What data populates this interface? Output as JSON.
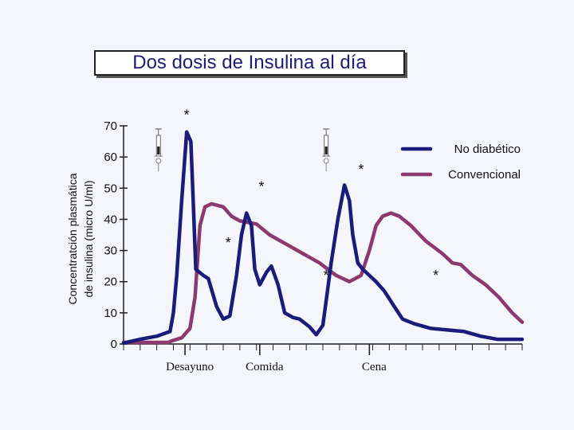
{
  "chart_data": {
    "type": "line",
    "title": "Dos dosis de Insulina al día",
    "ylabel_line1": "Concentratción plasmática",
    "ylabel_line2": "de insulina (micro U/ml)",
    "ylim": [
      0,
      70
    ],
    "yticks": [
      "0",
      "10",
      "20",
      "30",
      "40",
      "50",
      "60",
      "70"
    ],
    "xlim": [
      0,
      24
    ],
    "meals": [
      {
        "label": "Desayuno",
        "x": 3.7
      },
      {
        "label": "Comida",
        "x": 8.2
      },
      {
        "label": "Cena",
        "x": 14.8
      }
    ],
    "legend_position": "top-right",
    "series": [
      {
        "name": "No diabético",
        "color": "#1b1b7a",
        "points": [
          [
            0,
            0.3
          ],
          [
            1,
            1.5
          ],
          [
            2,
            2.5
          ],
          [
            2.8,
            4
          ],
          [
            3,
            10
          ],
          [
            3.2,
            22
          ],
          [
            3.5,
            46
          ],
          [
            3.8,
            68
          ],
          [
            4.05,
            65
          ],
          [
            4.2,
            45
          ],
          [
            4.35,
            24
          ],
          [
            4.8,
            22
          ],
          [
            5.1,
            21
          ],
          [
            5.6,
            12
          ],
          [
            6,
            8
          ],
          [
            6.4,
            9
          ],
          [
            6.8,
            22
          ],
          [
            7.1,
            35
          ],
          [
            7.4,
            42
          ],
          [
            7.7,
            38
          ],
          [
            7.9,
            24
          ],
          [
            8.2,
            19
          ],
          [
            8.6,
            23
          ],
          [
            8.9,
            25
          ],
          [
            9.3,
            19
          ],
          [
            9.7,
            10
          ],
          [
            10.2,
            8.5
          ],
          [
            10.6,
            8
          ],
          [
            11.2,
            5.5
          ],
          [
            11.6,
            3
          ],
          [
            12,
            6
          ],
          [
            12.2,
            14
          ],
          [
            12.5,
            26
          ],
          [
            12.9,
            40
          ],
          [
            13.3,
            51
          ],
          [
            13.6,
            46
          ],
          [
            13.8,
            35
          ],
          [
            14.1,
            26
          ],
          [
            14.4,
            24
          ],
          [
            14.8,
            22
          ],
          [
            15.2,
            20
          ],
          [
            15.7,
            17
          ],
          [
            16.3,
            12
          ],
          [
            16.8,
            8
          ],
          [
            17.5,
            6.5
          ],
          [
            18.5,
            5
          ],
          [
            19.5,
            4.5
          ],
          [
            20.5,
            4
          ],
          [
            21.5,
            2.5
          ],
          [
            22.5,
            1.5
          ],
          [
            24,
            1.5
          ]
        ]
      },
      {
        "name": "Convencional",
        "color": "#8b3a6e",
        "points": [
          [
            0,
            0.5
          ],
          [
            2.7,
            0.5
          ],
          [
            2.9,
            1
          ],
          [
            3.5,
            2
          ],
          [
            4,
            5
          ],
          [
            4.3,
            15
          ],
          [
            4.6,
            38
          ],
          [
            4.9,
            44
          ],
          [
            5.3,
            45
          ],
          [
            6,
            44
          ],
          [
            6.5,
            41
          ],
          [
            7,
            39.5
          ],
          [
            7.5,
            39
          ],
          [
            8,
            38.5
          ],
          [
            8.8,
            35
          ],
          [
            9.8,
            32
          ],
          [
            10.8,
            29
          ],
          [
            11.8,
            26
          ],
          [
            12.8,
            22
          ],
          [
            13.6,
            20
          ],
          [
            14.3,
            22
          ],
          [
            14.8,
            30
          ],
          [
            15.2,
            38
          ],
          [
            15.6,
            41
          ],
          [
            16.1,
            42
          ],
          [
            16.6,
            41
          ],
          [
            17.3,
            38
          ],
          [
            18.2,
            33
          ],
          [
            19.2,
            29
          ],
          [
            19.8,
            26
          ],
          [
            20.3,
            25.5
          ],
          [
            21,
            22
          ],
          [
            21.8,
            19
          ],
          [
            22.6,
            15
          ],
          [
            23.4,
            10
          ],
          [
            24,
            7
          ]
        ]
      }
    ],
    "asterisks": [
      {
        "x": 3.8,
        "y": 74
      },
      {
        "x": 6.3,
        "y": 33
      },
      {
        "x": 8.3,
        "y": 51
      },
      {
        "x": 12.2,
        "y": 22.5
      },
      {
        "x": 14.3,
        "y": 56.5
      },
      {
        "x": 18.8,
        "y": 22.5
      }
    ],
    "syringes": [
      {
        "x": 2.1
      },
      {
        "x": 12.2
      }
    ]
  }
}
